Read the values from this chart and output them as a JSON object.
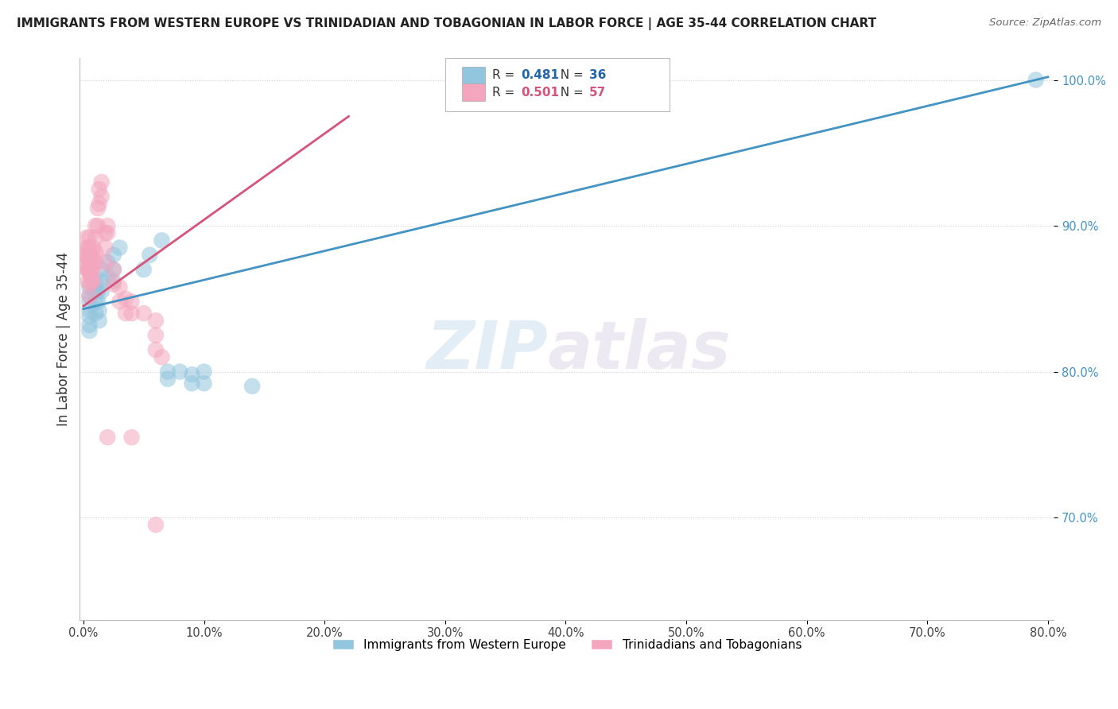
{
  "title": "IMMIGRANTS FROM WESTERN EUROPE VS TRINIDADIAN AND TOBAGONIAN IN LABOR FORCE | AGE 35-44 CORRELATION CHART",
  "source": "Source: ZipAtlas.com",
  "ylabel": "In Labor Force | Age 35-44",
  "legend_label_blue": "Immigrants from Western Europe",
  "legend_label_pink": "Trinidadians and Tobagonians",
  "R_blue": 0.481,
  "N_blue": 36,
  "R_pink": 0.501,
  "N_pink": 57,
  "xlim": [
    -0.003,
    0.805
  ],
  "ylim": [
    0.63,
    1.015
  ],
  "xticks": [
    0.0,
    0.1,
    0.2,
    0.3,
    0.4,
    0.5,
    0.6,
    0.7,
    0.8
  ],
  "yticks": [
    0.7,
    0.8,
    0.9,
    1.0
  ],
  "ytick_labels": [
    "70.0%",
    "80.0%",
    "90.0%",
    "100.0%"
  ],
  "watermark_zip": "ZIP",
  "watermark_atlas": "atlas",
  "blue_color": "#92c5de",
  "pink_color": "#f4a6bf",
  "blue_line_color": "#4393c3",
  "pink_line_color": "#d6537a",
  "blue_text_color": "#2166ac",
  "pink_text_color": "#d6537a",
  "ytick_color": "#4393c3",
  "blue_scatter_x": [
    0.005,
    0.005,
    0.005,
    0.005,
    0.005,
    0.005,
    0.005,
    0.01,
    0.01,
    0.01,
    0.01,
    0.012,
    0.012,
    0.013,
    0.013,
    0.015,
    0.015,
    0.015,
    0.02,
    0.02,
    0.025,
    0.025,
    0.025,
    0.03,
    0.05,
    0.055,
    0.065,
    0.07,
    0.07,
    0.08,
    0.09,
    0.09,
    0.1,
    0.1,
    0.14,
    0.79
  ],
  "blue_scatter_y": [
    0.858,
    0.852,
    0.848,
    0.842,
    0.838,
    0.832,
    0.828,
    0.86,
    0.855,
    0.848,
    0.84,
    0.855,
    0.848,
    0.842,
    0.835,
    0.87,
    0.862,
    0.855,
    0.875,
    0.865,
    0.88,
    0.87,
    0.862,
    0.885,
    0.87,
    0.88,
    0.89,
    0.8,
    0.795,
    0.8,
    0.798,
    0.792,
    0.8,
    0.792,
    0.79,
    1.0
  ],
  "pink_scatter_x": [
    0.002,
    0.002,
    0.003,
    0.003,
    0.003,
    0.003,
    0.004,
    0.004,
    0.004,
    0.004,
    0.005,
    0.005,
    0.005,
    0.005,
    0.005,
    0.005,
    0.006,
    0.006,
    0.006,
    0.007,
    0.007,
    0.007,
    0.008,
    0.008,
    0.008,
    0.008,
    0.01,
    0.01,
    0.01,
    0.01,
    0.012,
    0.012,
    0.013,
    0.013,
    0.015,
    0.015,
    0.018,
    0.018,
    0.018,
    0.02,
    0.02,
    0.02,
    0.025,
    0.025,
    0.03,
    0.03,
    0.035,
    0.035,
    0.04,
    0.04,
    0.05,
    0.06,
    0.06,
    0.06,
    0.065,
    0.04,
    0.06
  ],
  "pink_scatter_y": [
    0.88,
    0.872,
    0.892,
    0.885,
    0.878,
    0.87,
    0.885,
    0.878,
    0.87,
    0.862,
    0.892,
    0.885,
    0.875,
    0.868,
    0.86,
    0.852,
    0.88,
    0.872,
    0.865,
    0.878,
    0.87,
    0.862,
    0.885,
    0.878,
    0.87,
    0.862,
    0.9,
    0.892,
    0.882,
    0.875,
    0.912,
    0.9,
    0.925,
    0.915,
    0.93,
    0.92,
    0.895,
    0.885,
    0.875,
    0.9,
    0.895,
    0.755,
    0.87,
    0.86,
    0.858,
    0.848,
    0.85,
    0.84,
    0.848,
    0.84,
    0.84,
    0.835,
    0.825,
    0.815,
    0.81,
    0.755,
    0.695
  ],
  "blue_trend_x": [
    0.0,
    0.8
  ],
  "blue_trend_y": [
    0.843,
    1.002
  ],
  "pink_trend_x": [
    0.0,
    0.22
  ],
  "pink_trend_y": [
    0.845,
    0.975
  ]
}
